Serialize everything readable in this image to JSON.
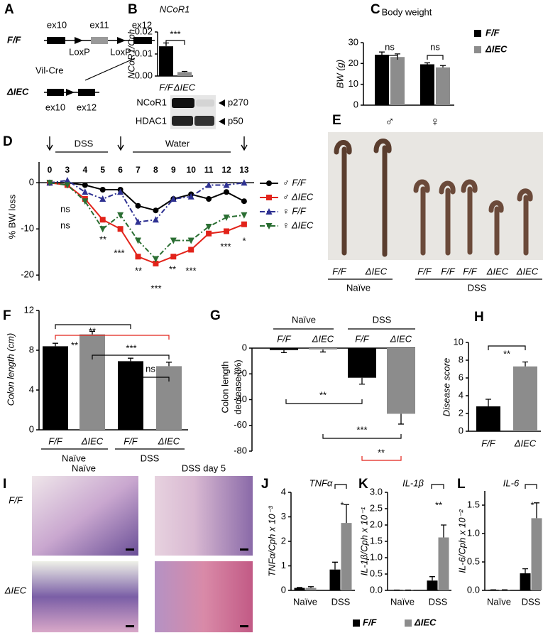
{
  "diagram": {
    "panel": "A",
    "floxed": "F/F",
    "exons": [
      "ex10",
      "ex11",
      "ex12"
    ],
    "loxp": [
      "LoxP",
      "LoxP"
    ],
    "cre": "Vil-Cre",
    "deleted": "ΔIEC",
    "deleted_exons": [
      "ex10",
      "ex12"
    ]
  },
  "blot": {
    "proteins": [
      "NCoR1",
      "HDAC1"
    ],
    "sizes": [
      "p270",
      "p50"
    ]
  },
  "photo": {
    "panel": "E",
    "labels": [
      "F/F",
      "ΔIEC",
      "F/F",
      "F/F",
      "F/F",
      "ΔIEC",
      "ΔIEC"
    ],
    "groups": [
      "Naïve",
      "DSS"
    ]
  },
  "histology": {
    "panel": "I",
    "columns": [
      "Naïve",
      "DSS day 5"
    ],
    "rows": [
      "F/F",
      "ΔIEC"
    ]
  },
  "chart_data": [
    {
      "panel": "B",
      "type": "bar",
      "title": "NCoR1",
      "y_label": "NCoR1/Cph",
      "categories": [
        "F/F",
        "ΔIEC"
      ],
      "values": [
        0.0135,
        0.0018
      ],
      "errors": [
        0.0015,
        0.0003
      ],
      "colors": [
        "#000000",
        "#8c8c8c"
      ],
      "ylim": [
        0,
        0.02
      ],
      "yticks": [
        {
          "value": 0,
          "label": "0.00"
        },
        {
          "value": 0.01,
          "label": "0.01"
        },
        {
          "value": 0.02,
          "label": "0.02"
        }
      ],
      "annotations": [
        {
          "text": "***",
          "color": "#000000"
        }
      ]
    },
    {
      "panel": "C",
      "type": "grouped_bar",
      "title": "Body weight",
      "y_label": "BW (g)",
      "categories": [
        "♂",
        "♀"
      ],
      "series": [
        {
          "name": "F/F",
          "color": "#000000",
          "values": [
            24.2,
            19.6
          ],
          "errors": [
            1.3,
            0.7
          ]
        },
        {
          "name": "ΔIEC",
          "color": "#8c8c8c",
          "values": [
            23.1,
            18.1
          ],
          "errors": [
            1.5,
            0.9
          ]
        }
      ],
      "ylim": [
        0,
        30
      ],
      "yticks": [
        0,
        10,
        20,
        30
      ],
      "legend": "right",
      "annotations": [
        {
          "text": "ns",
          "color": "#000000"
        },
        {
          "text": "ns",
          "color": "#000000"
        }
      ]
    },
    {
      "panel": "D",
      "type": "line",
      "y_label": "% BW loss",
      "categories": [
        "0",
        "3",
        "4",
        "5",
        "6",
        "7",
        "8",
        "9",
        "10",
        "11",
        "12",
        "13"
      ],
      "periods": [
        "DSS",
        "Water"
      ],
      "series": [
        {
          "name": "♂ F/F",
          "color": "#000000",
          "marker": "circle",
          "dash": "solid",
          "values": [
            0,
            0,
            -0.5,
            -1.5,
            -1.5,
            -5,
            -6,
            -3.5,
            -2.5,
            -3.5,
            -2,
            -4
          ]
        },
        {
          "name": "♂ ΔIEC",
          "color": "#e2231a",
          "marker": "square",
          "dash": "solid",
          "values": [
            0,
            -0.5,
            -3.5,
            -8,
            -10,
            -16,
            -17.5,
            -16,
            -14.5,
            -11,
            -10.5,
            -9
          ]
        },
        {
          "name": "♀ F/F",
          "color": "#2e3192",
          "marker": "triangle-up",
          "dash": "dashdot",
          "values": [
            0,
            0.5,
            -2,
            -3.5,
            -2,
            -8.5,
            -8,
            -3.5,
            -3,
            -0.5,
            -0.5,
            0
          ]
        },
        {
          "name": "♀ ΔIEC",
          "color": "#2a6e32",
          "marker": "triangle-down",
          "dash": "dashdot",
          "values": [
            0,
            -0.5,
            -4,
            -10,
            -7,
            -12.5,
            -16.5,
            -12.5,
            -12.5,
            -9.5,
            -7.5,
            -7
          ]
        }
      ],
      "ylim": [
        -21.2,
        4.5
      ],
      "yticks": [
        0,
        -10,
        -20
      ],
      "legend": "right",
      "annotations": [
        {
          "text": "ns",
          "color": "#000000"
        },
        {
          "text": "ns",
          "color": "#000000"
        },
        {
          "text": "**",
          "color": "#000000"
        },
        {
          "text": "***",
          "color": "#000000"
        },
        {
          "text": "**",
          "color": "#000000"
        },
        {
          "text": "***",
          "color": "#000000"
        },
        {
          "text": "**",
          "color": "#000000"
        },
        {
          "text": "***",
          "color": "#000000"
        },
        {
          "text": "***",
          "color": "#000000"
        },
        {
          "text": "*",
          "color": "#000000"
        }
      ]
    },
    {
      "panel": "F",
      "type": "bar",
      "y_label": "Colon length (cm)",
      "categories": [
        "F/F",
        "ΔIEC",
        "F/F",
        "ΔIEC"
      ],
      "groups": [
        "Naïve",
        "DSS"
      ],
      "values": [
        8.4,
        9.6,
        6.9,
        6.4
      ],
      "errors": [
        0.3,
        0.3,
        0.3,
        0.4
      ],
      "colors": [
        "#000000",
        "#8c8c8c",
        "#000000",
        "#8c8c8c"
      ],
      "ylim": [
        0,
        12
      ],
      "yticks": [
        0,
        4,
        8,
        12
      ],
      "annotations": [
        {
          "text": "**",
          "color": "#000000"
        },
        {
          "text": "**",
          "color": "#e2231a"
        },
        {
          "text": "***",
          "color": "#000000"
        },
        {
          "text": "ns",
          "color": "#000000"
        }
      ]
    },
    {
      "panel": "G",
      "type": "bar",
      "y_label": [
        "Colon length",
        "decrease (%)"
      ],
      "categories": [
        "F/F",
        "ΔIEC",
        "F/F",
        "ΔIEC"
      ],
      "groups": [
        "Naïve",
        "DSS"
      ],
      "values": [
        -1.5,
        -1,
        -23,
        -51
      ],
      "errors": [
        2,
        2,
        5,
        8
      ],
      "colors": [
        "#000000",
        "#8c8c8c",
        "#000000",
        "#8c8c8c"
      ],
      "ylim": [
        -80,
        0
      ],
      "yticks": [
        0,
        -20,
        -40,
        -60,
        -80
      ],
      "annotations": [
        {
          "text": "**",
          "color": "#000000"
        },
        {
          "text": "***",
          "color": "#000000"
        },
        {
          "text": "**",
          "color": "#e2231a"
        }
      ]
    },
    {
      "panel": "H",
      "type": "bar",
      "y_label": "Disease score",
      "categories": [
        "F/F",
        "ΔIEC"
      ],
      "values": [
        2.8,
        7.3
      ],
      "errors": [
        0.8,
        0.5
      ],
      "colors": [
        "#000000",
        "#8c8c8c"
      ],
      "ylim": [
        0,
        10
      ],
      "yticks": [
        0,
        2,
        4,
        6,
        8,
        10
      ],
      "annotations": [
        {
          "text": "**",
          "color": "#000000"
        }
      ]
    },
    {
      "panel": "J",
      "type": "grouped_bar",
      "title": "TNFα",
      "y_label": "TNFα/Cph x 10⁻³",
      "categories": [
        "Naïve",
        "DSS"
      ],
      "series": [
        {
          "color": "#000000",
          "values": [
            0.1,
            0.85
          ],
          "errors": [
            0.02,
            0.3
          ]
        },
        {
          "color": "#8c8c8c",
          "values": [
            0.1,
            2.75
          ],
          "errors": [
            0.05,
            0.75
          ]
        }
      ],
      "ylim": [
        0,
        4
      ],
      "yticks": [
        0,
        1,
        2,
        3,
        4
      ],
      "annotations": [
        {
          "text": "*",
          "color": "#000000"
        }
      ]
    },
    {
      "panel": "K",
      "type": "grouped_bar",
      "title": "IL-1β",
      "y_label": "IL-1β/Cph x 10⁻¹",
      "categories": [
        "Naïve",
        "DSS"
      ],
      "series": [
        {
          "color": "#000000",
          "values": [
            0.01,
            0.3
          ],
          "errors": [
            0,
            0.12
          ]
        },
        {
          "color": "#8c8c8c",
          "values": [
            0.01,
            1.62
          ],
          "errors": [
            0,
            0.38
          ]
        }
      ],
      "ylim": [
        0,
        3
      ],
      "yticks": [
        {
          "value": 0,
          "label": "0.0"
        },
        {
          "value": 0.5,
          "label": "0.5"
        },
        {
          "value": 1,
          "label": "1.0"
        },
        {
          "value": 1.5,
          "label": "1.5"
        },
        {
          "value": 2,
          "label": "2.0"
        },
        {
          "value": 2.5,
          "label": "2.5"
        },
        {
          "value": 3,
          "label": "3.0"
        }
      ],
      "annotations": [
        {
          "text": "**",
          "color": "#000000"
        }
      ]
    },
    {
      "panel": "L",
      "type": "grouped_bar",
      "title": "IL-6",
      "y_label": "IL-6/Cph x 10⁻²",
      "categories": [
        "Naïve",
        "DSS"
      ],
      "series": [
        {
          "name": "F/F",
          "color": "#000000",
          "values": [
            0.01,
            0.3
          ],
          "errors": [
            0,
            0.08
          ]
        },
        {
          "name": "ΔIEC",
          "color": "#8c8c8c",
          "values": [
            0.01,
            1.27
          ],
          "errors": [
            0,
            0.27
          ]
        }
      ],
      "ylim": [
        0,
        1.75
      ],
      "yticks": [
        {
          "value": 0,
          "label": "0.0"
        },
        {
          "value": 0.5,
          "label": "0.5"
        },
        {
          "value": 1,
          "label": "1.0"
        },
        {
          "value": 1.5,
          "label": "1.5"
        }
      ],
      "legend": "bottom",
      "annotations": [
        {
          "text": "*",
          "color": "#000000"
        }
      ]
    }
  ]
}
